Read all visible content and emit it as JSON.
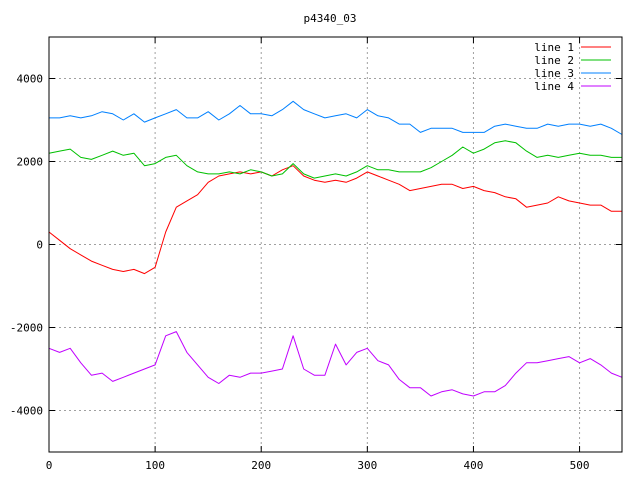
{
  "chart_data": {
    "type": "line",
    "title": "p4340_03",
    "xlabel": "",
    "ylabel": "",
    "xlim": [
      0,
      540
    ],
    "ylim": [
      -5000,
      5000
    ],
    "xticks": [
      0,
      100,
      200,
      300,
      400,
      500
    ],
    "yticks": [
      -4000,
      -2000,
      0,
      2000,
      4000
    ],
    "grid": true,
    "legend_position": "top-right",
    "x": [
      0,
      10,
      20,
      30,
      40,
      50,
      60,
      70,
      80,
      90,
      100,
      110,
      120,
      130,
      140,
      150,
      160,
      170,
      180,
      190,
      200,
      210,
      220,
      230,
      240,
      250,
      260,
      270,
      280,
      290,
      300,
      310,
      320,
      330,
      340,
      350,
      360,
      370,
      380,
      390,
      400,
      410,
      420,
      430,
      440,
      450,
      460,
      470,
      480,
      490,
      500,
      510,
      520,
      530,
      540
    ],
    "series": [
      {
        "name": "line 1",
        "color": "#ff0000",
        "values": [
          300,
          100,
          -100,
          -250,
          -400,
          -500,
          -600,
          -650,
          -600,
          -700,
          -550,
          300,
          900,
          1050,
          1200,
          1500,
          1650,
          1700,
          1750,
          1700,
          1750,
          1650,
          1800,
          1900,
          1650,
          1550,
          1500,
          1550,
          1500,
          1600,
          1750,
          1650,
          1550,
          1450,
          1300,
          1350,
          1400,
          1450,
          1450,
          1350,
          1400,
          1300,
          1250,
          1150,
          1100,
          900,
          950,
          1000,
          1150,
          1050,
          1000,
          950,
          950,
          800,
          800
        ]
      },
      {
        "name": "line 2",
        "color": "#00c000",
        "values": [
          2200,
          2250,
          2300,
          2100,
          2050,
          2150,
          2250,
          2150,
          2200,
          1900,
          1950,
          2100,
          2150,
          1900,
          1750,
          1700,
          1700,
          1750,
          1700,
          1800,
          1750,
          1650,
          1700,
          1950,
          1700,
          1600,
          1650,
          1700,
          1650,
          1750,
          1900,
          1800,
          1800,
          1750,
          1750,
          1750,
          1850,
          2000,
          2150,
          2350,
          2200,
          2300,
          2450,
          2500,
          2450,
          2250,
          2100,
          2150,
          2100,
          2150,
          2200,
          2150,
          2150,
          2100,
          2100
        ]
      },
      {
        "name": "line 3",
        "color": "#0080ff",
        "values": [
          3050,
          3050,
          3100,
          3050,
          3100,
          3200,
          3150,
          3000,
          3150,
          2950,
          3050,
          3150,
          3250,
          3050,
          3050,
          3200,
          3000,
          3150,
          3350,
          3150,
          3150,
          3100,
          3250,
          3450,
          3250,
          3150,
          3050,
          3100,
          3150,
          3050,
          3250,
          3100,
          3050,
          2900,
          2900,
          2700,
          2800,
          2800,
          2800,
          2700,
          2700,
          2700,
          2850,
          2900,
          2850,
          2800,
          2800,
          2900,
          2850,
          2900,
          2900,
          2850,
          2900,
          2800,
          2650
        ]
      },
      {
        "name": "line 4",
        "color": "#c000ff",
        "values": [
          -2500,
          -2600,
          -2500,
          -2850,
          -3150,
          -3100,
          -3300,
          -3200,
          -3100,
          -3000,
          -2900,
          -2200,
          -2100,
          -2600,
          -2900,
          -3200,
          -3350,
          -3150,
          -3200,
          -3100,
          -3100,
          -3050,
          -3000,
          -2200,
          -3000,
          -3150,
          -3150,
          -2400,
          -2900,
          -2600,
          -2500,
          -2800,
          -2900,
          -3250,
          -3450,
          -3450,
          -3650,
          -3550,
          -3500,
          -3600,
          -3650,
          -3550,
          -3550,
          -3400,
          -3100,
          -2850,
          -2850,
          -2800,
          -2750,
          -2700,
          -2850,
          -2750,
          -2900,
          -3100,
          -3200
        ]
      }
    ]
  }
}
